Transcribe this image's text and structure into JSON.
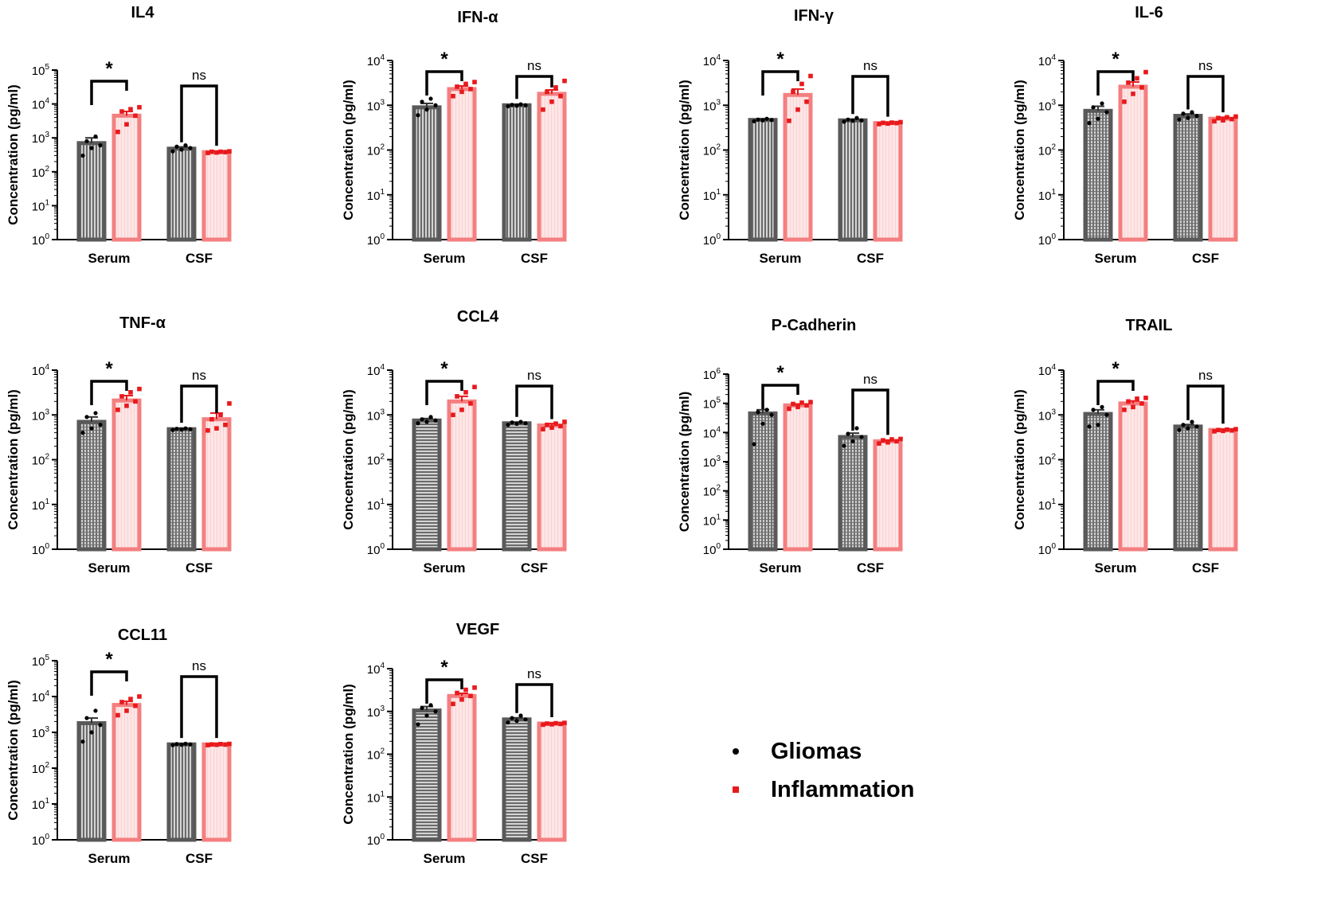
{
  "figure": {
    "y_axis_label": "Concentration (pg/ml)",
    "groups": [
      "Serum",
      "CSF"
    ],
    "colors": {
      "gliomas": "#595959",
      "inflammation": "#f47f80",
      "inflammation_fill": "#fcdede",
      "inflammation_point": "#e8191c"
    }
  },
  "legend": {
    "items": [
      {
        "label": "Gliomas",
        "marker": "dot"
      },
      {
        "label": "Inflammation",
        "marker": "square"
      }
    ]
  },
  "chart_data": [
    {
      "type": "bar",
      "title": "IL4",
      "xlabel": "",
      "ylabel": "Concentration (pg/ml)",
      "yscale": "log",
      "ylim_exp": [
        0,
        5
      ],
      "y_ticks": [
        "10^0",
        "10^1",
        "10^2",
        "10^3",
        "10^4",
        "10^5"
      ],
      "categories": [
        "Serum",
        "CSF"
      ],
      "series": [
        {
          "name": "Gliomas",
          "values": [
            700,
            480
          ],
          "errors": [
            300,
            60
          ],
          "points": [
            [
              300,
              500,
              600,
              800,
              1100
            ],
            [
              400,
              450,
              500,
              550,
              600
            ]
          ]
        },
        {
          "name": "Inflammation",
          "values": [
            4500,
            380
          ],
          "errors": [
            1500,
            20
          ],
          "points": [
            [
              1500,
              2500,
              4500,
              6000,
              7000,
              8000
            ],
            [
              360,
              370,
              380,
              390,
              390,
              400
            ]
          ]
        }
      ],
      "significance": [
        "*",
        "ns"
      ]
    },
    {
      "type": "bar",
      "title": "IFN-α",
      "xlabel": "",
      "ylabel": "Concentration (pg/ml)",
      "yscale": "log",
      "ylim_exp": [
        0,
        4
      ],
      "y_ticks": [
        "10^0",
        "10^1",
        "10^2",
        "10^3",
        "10^4"
      ],
      "categories": [
        "Serum",
        "CSF"
      ],
      "series": [
        {
          "name": "Gliomas",
          "values": [
            900,
            1000
          ],
          "errors": [
            200,
            50
          ],
          "points": [
            [
              600,
              800,
              1000,
              1200,
              1400
            ],
            [
              950,
              980,
              1000,
              1020,
              1050
            ]
          ]
        },
        {
          "name": "Inflammation",
          "values": [
            2300,
            1800
          ],
          "errors": [
            400,
            400
          ],
          "points": [
            [
              1600,
              2000,
              2300,
              2600,
              3000,
              3300
            ],
            [
              800,
              1200,
              1600,
              2000,
              2500,
              3500
            ]
          ]
        }
      ],
      "significance": [
        "*",
        "ns"
      ]
    },
    {
      "type": "bar",
      "title": "IFN-γ",
      "xlabel": "",
      "ylabel": "Concentration (pg/ml)",
      "yscale": "log",
      "ylim_exp": [
        0,
        4
      ],
      "y_ticks": [
        "10^0",
        "10^1",
        "10^2",
        "10^3",
        "10^4"
      ],
      "categories": [
        "Serum",
        "CSF"
      ],
      "series": [
        {
          "name": "Gliomas",
          "values": [
            470,
            460
          ],
          "errors": [
            30,
            30
          ],
          "points": [
            [
              440,
              460,
              470,
              480,
              500
            ],
            [
              430,
              450,
              460,
              480,
              520
            ]
          ]
        },
        {
          "name": "Inflammation",
          "values": [
            1700,
            400
          ],
          "errors": [
            600,
            15
          ],
          "points": [
            [
              450,
              800,
              1200,
              2000,
              3000,
              4500
            ],
            [
              380,
              390,
              400,
              405,
              410,
              420
            ]
          ]
        }
      ],
      "significance": [
        "*",
        "ns"
      ]
    },
    {
      "type": "bar",
      "title": "IL-6",
      "xlabel": "",
      "ylabel": "Concentration (pg/ml)",
      "yscale": "log",
      "ylim_exp": [
        0,
        4
      ],
      "y_ticks": [
        "10^0",
        "10^1",
        "10^2",
        "10^3",
        "10^4"
      ],
      "categories": [
        "Serum",
        "CSF"
      ],
      "series": [
        {
          "name": "Gliomas",
          "values": [
            750,
            580
          ],
          "errors": [
            200,
            60
          ],
          "points": [
            [
              400,
              500,
              700,
              900,
              1100
            ],
            [
              480,
              520,
              580,
              650,
              700
            ]
          ]
        },
        {
          "name": "Inflammation",
          "values": [
            2600,
            500
          ],
          "errors": [
            700,
            40
          ],
          "points": [
            [
              1200,
              1800,
              2500,
              3200,
              4000,
              5500
            ],
            [
              440,
              460,
              490,
              520,
              540,
              560
            ]
          ]
        }
      ],
      "significance": [
        "*",
        "ns"
      ]
    },
    {
      "type": "bar",
      "title": "TNF-α",
      "xlabel": "",
      "ylabel": "Concentration (pg/ml)",
      "yscale": "log",
      "ylim_exp": [
        0,
        4
      ],
      "y_ticks": [
        "10^0",
        "10^1",
        "10^2",
        "10^3",
        "10^4"
      ],
      "categories": [
        "Serum",
        "CSF"
      ],
      "series": [
        {
          "name": "Gliomas",
          "values": [
            700,
            480
          ],
          "errors": [
            200,
            20
          ],
          "points": [
            [
              400,
              500,
              600,
              900,
              1100
            ],
            [
              460,
              470,
              480,
              490,
              500
            ]
          ]
        },
        {
          "name": "Inflammation",
          "values": [
            2100,
            800
          ],
          "errors": [
            600,
            300
          ],
          "points": [
            [
              1300,
              1600,
              2000,
              2600,
              3200,
              3800
            ],
            [
              450,
              500,
              600,
              800,
              1000,
              1800
            ]
          ]
        }
      ],
      "significance": [
        "*",
        "ns"
      ]
    },
    {
      "type": "bar",
      "title": "CCL4",
      "xlabel": "",
      "ylabel": "Concentration (pg/ml)",
      "yscale": "log",
      "ylim_exp": [
        0,
        4
      ],
      "y_ticks": [
        "10^0",
        "10^1",
        "10^2",
        "10^3",
        "10^4"
      ],
      "categories": [
        "Serum",
        "CSF"
      ],
      "series": [
        {
          "name": "Gliomas",
          "values": [
            750,
            650
          ],
          "errors": [
            80,
            40
          ],
          "points": [
            [
              650,
              700,
              750,
              800,
              900
            ],
            [
              600,
              630,
              650,
              680,
              700
            ]
          ]
        },
        {
          "name": "Inflammation",
          "values": [
            2000,
            580
          ],
          "errors": [
            600,
            60
          ],
          "points": [
            [
              1000,
              1300,
              1800,
              2600,
              3200,
              4200
            ],
            [
              480,
              520,
              560,
              600,
              640,
              700
            ]
          ]
        }
      ],
      "significance": [
        "*",
        "ns"
      ]
    },
    {
      "type": "bar",
      "title": "P-Cadherin",
      "xlabel": "",
      "ylabel": "Concentration (pg/ml)",
      "yscale": "log",
      "ylim_exp": [
        0,
        6
      ],
      "y_ticks": [
        "10^0",
        "10^1",
        "10^2",
        "10^3",
        "10^4",
        "10^5",
        "10^6"
      ],
      "categories": [
        "Serum",
        "CSF"
      ],
      "series": [
        {
          "name": "Gliomas",
          "values": [
            45000,
            7000
          ],
          "errors": [
            15000,
            2500
          ],
          "points": [
            [
              4000,
              20000,
              40000,
              50000,
              60000
            ],
            [
              3500,
              5000,
              7000,
              9000,
              14000
            ]
          ]
        },
        {
          "name": "Inflammation",
          "values": [
            85000,
            5000
          ],
          "errors": [
            10000,
            500
          ],
          "points": [
            [
              65000,
              75000,
              85000,
              95000,
              105000,
              110000
            ],
            [
              4200,
              4600,
              5000,
              5400,
              5800,
              6000
            ]
          ]
        }
      ],
      "significance": [
        "*",
        "ns"
      ]
    },
    {
      "type": "bar",
      "title": "TRAIL",
      "xlabel": "",
      "ylabel": "Concentration (pg/ml)",
      "yscale": "log",
      "ylim_exp": [
        0,
        4
      ],
      "y_ticks": [
        "10^0",
        "10^1",
        "10^2",
        "10^3",
        "10^4"
      ],
      "categories": [
        "Serum",
        "CSF"
      ],
      "series": [
        {
          "name": "Gliomas",
          "values": [
            1050,
            550
          ],
          "errors": [
            250,
            60
          ],
          "points": [
            [
              550,
              600,
              1000,
              1300,
              1500
            ],
            [
              460,
              500,
              550,
              600,
              700
            ]
          ]
        },
        {
          "name": "Inflammation",
          "values": [
            1800,
            460
          ],
          "errors": [
            250,
            20
          ],
          "points": [
            [
              1300,
              1500,
              1800,
              2000,
              2300,
              2400
            ],
            [
              430,
              440,
              450,
              460,
              470,
              480
            ]
          ]
        }
      ],
      "significance": [
        "*",
        "ns"
      ]
    },
    {
      "type": "bar",
      "title": "CCL11",
      "xlabel": "",
      "ylabel": "Concentration (pg/ml)",
      "yscale": "log",
      "ylim_exp": [
        0,
        5
      ],
      "y_ticks": [
        "10^0",
        "10^1",
        "10^2",
        "10^3",
        "10^4",
        "10^5"
      ],
      "categories": [
        "Serum",
        "CSF"
      ],
      "series": [
        {
          "name": "Gliomas",
          "values": [
            1800,
            460
          ],
          "errors": [
            700,
            20
          ],
          "points": [
            [
              550,
              1000,
              1600,
              2500,
              4000
            ],
            [
              440,
              450,
              460,
              470,
              480
            ]
          ]
        },
        {
          "name": "Inflammation",
          "values": [
            5800,
            460
          ],
          "errors": [
            1500,
            15
          ],
          "points": [
            [
              3000,
              4000,
              5500,
              7000,
              8500,
              10000
            ],
            [
              440,
              450,
              455,
              460,
              470,
              475
            ]
          ]
        }
      ],
      "significance": [
        "*",
        "ns"
      ]
    },
    {
      "type": "bar",
      "title": "VEGF",
      "xlabel": "",
      "ylabel": "Concentration (pg/ml)",
      "yscale": "log",
      "ylim_exp": [
        0,
        4
      ],
      "y_ticks": [
        "10^0",
        "10^1",
        "10^2",
        "10^3",
        "10^4"
      ],
      "categories": [
        "Serum",
        "CSF"
      ],
      "series": [
        {
          "name": "Gliomas",
          "values": [
            1050,
            650
          ],
          "errors": [
            250,
            60
          ],
          "points": [
            [
              500,
              800,
              1000,
              1200,
              1400
            ],
            [
              550,
              600,
              650,
              700,
              800
            ]
          ]
        },
        {
          "name": "Inflammation",
          "values": [
            2300,
            520
          ],
          "errors": [
            350,
            20
          ],
          "points": [
            [
              1500,
              1900,
              2300,
              2700,
              3200,
              3600
            ],
            [
              490,
              500,
              510,
              520,
              530,
              540
            ]
          ]
        }
      ],
      "significance": [
        "*",
        "ns"
      ]
    }
  ]
}
